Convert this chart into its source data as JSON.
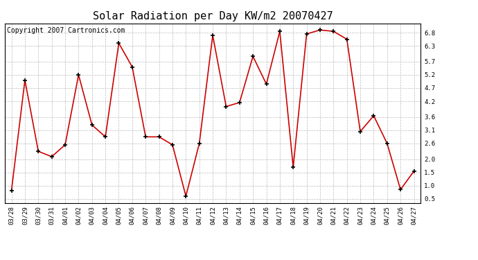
{
  "title": "Solar Radiation per Day KW/m2 20070427",
  "copyright": "Copyright 2007 Cartronics.com",
  "labels": [
    "03/28",
    "03/29",
    "03/30",
    "03/31",
    "04/01",
    "04/02",
    "04/03",
    "04/04",
    "04/05",
    "04/06",
    "04/07",
    "04/08",
    "04/09",
    "04/10",
    "04/11",
    "04/12",
    "04/13",
    "04/14",
    "04/15",
    "04/16",
    "04/17",
    "04/18",
    "04/19",
    "04/20",
    "04/21",
    "04/22",
    "04/23",
    "04/24",
    "04/25",
    "04/26",
    "04/27"
  ],
  "values": [
    0.82,
    5.0,
    2.3,
    2.1,
    2.55,
    5.2,
    3.3,
    2.85,
    6.4,
    5.5,
    2.85,
    2.85,
    2.55,
    0.6,
    2.6,
    6.7,
    4.0,
    4.15,
    5.9,
    4.85,
    6.85,
    1.7,
    6.75,
    6.9,
    6.85,
    6.55,
    3.05,
    3.65,
    2.6,
    0.85,
    1.55
  ],
  "line_color": "#cc0000",
  "marker_color": "#000000",
  "bg_color": "#ffffff",
  "grid_color": "#aaaaaa",
  "yticks": [
    0.5,
    1.0,
    1.5,
    2.0,
    2.6,
    3.1,
    3.6,
    4.2,
    4.7,
    5.2,
    5.7,
    6.3,
    6.8
  ],
  "ylim": [
    0.35,
    7.15
  ],
  "title_fontsize": 11,
  "tick_fontsize": 6.5,
  "copyright_fontsize": 7
}
